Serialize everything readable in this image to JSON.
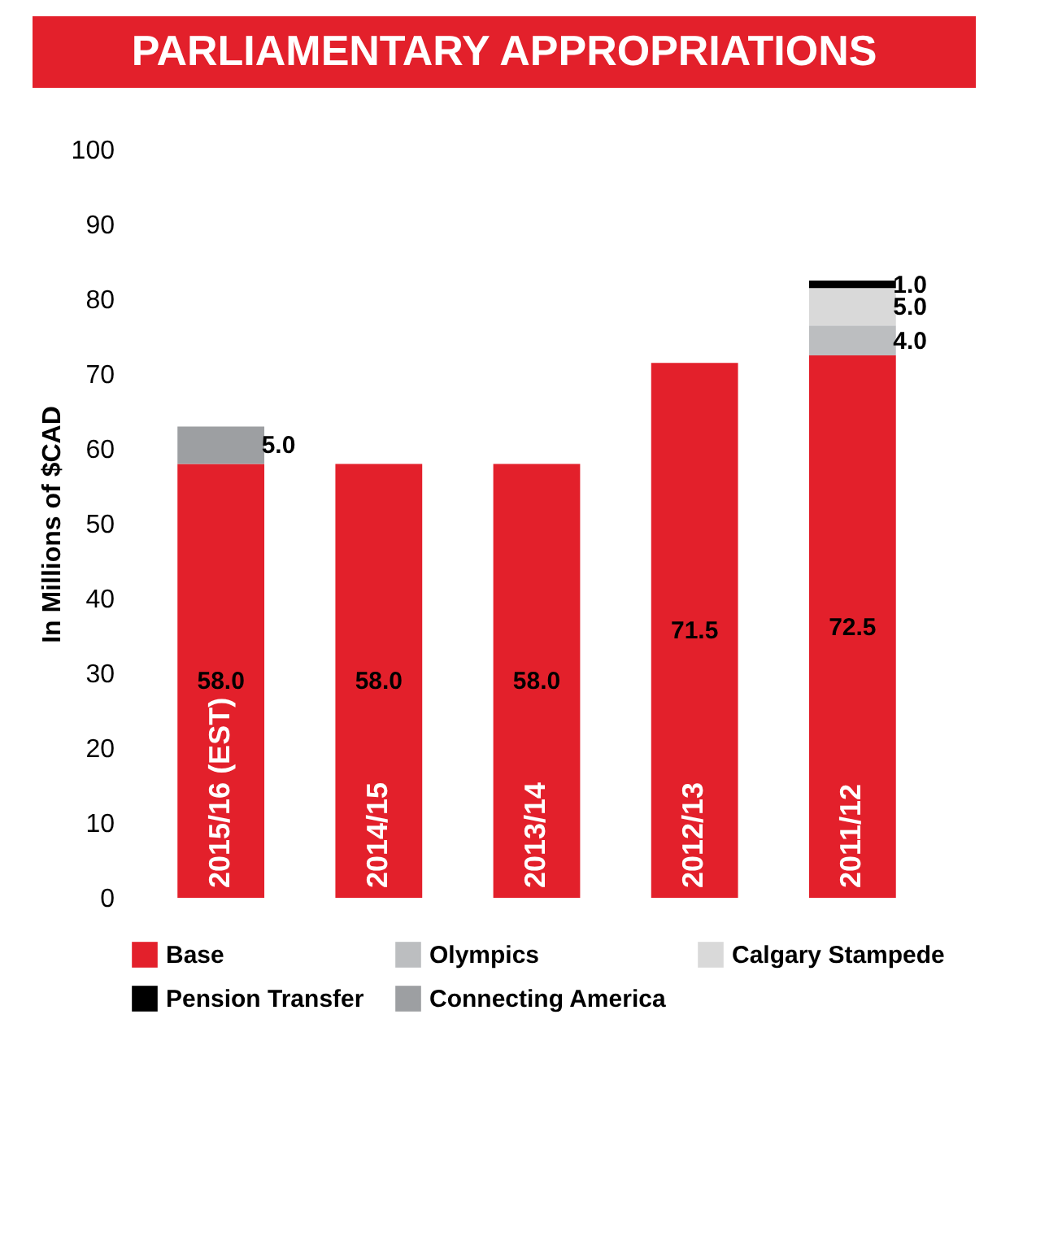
{
  "chart_data": {
    "type": "bar",
    "title": "PARLIAMENTARY APPROPRIATIONS",
    "ylabel": "In Millions of $CAD",
    "categories": [
      "2015/16 (EST)",
      "2014/15",
      "2013/14",
      "2012/13",
      "2011/12"
    ],
    "stacked": true,
    "legend": "bottom",
    "grid": false,
    "ylim": [
      0,
      100
    ],
    "yticks": [
      0,
      10,
      20,
      30,
      40,
      50,
      60,
      70,
      80,
      90,
      100
    ],
    "series": [
      {
        "name": "Base",
        "color": "#e3202b",
        "values": [
          58.0,
          58.0,
          58.0,
          71.5,
          72.5
        ],
        "value_labels": [
          "58.0",
          "58.0",
          "58.0",
          "71.5",
          "72.5"
        ]
      },
      {
        "name": "Olympics",
        "color": "#bcbec0",
        "values": [
          null,
          null,
          null,
          null,
          4.0
        ],
        "value_labels": [
          null,
          null,
          null,
          null,
          "4.0"
        ]
      },
      {
        "name": "Calgary Stampede",
        "color": "#d9d9d9",
        "values": [
          null,
          null,
          null,
          null,
          5.0
        ],
        "value_labels": [
          null,
          null,
          null,
          null,
          "5.0"
        ]
      },
      {
        "name": "Pension Transfer",
        "color": "#000000",
        "values": [
          null,
          null,
          null,
          null,
          1.0
        ],
        "value_labels": [
          null,
          null,
          null,
          null,
          "1.0"
        ]
      },
      {
        "name": "Connecting America",
        "color": "#9d9fa2",
        "values": [
          5.0,
          null,
          null,
          null,
          null
        ],
        "value_labels": [
          "5.0",
          null,
          null,
          null,
          null
        ]
      }
    ]
  }
}
